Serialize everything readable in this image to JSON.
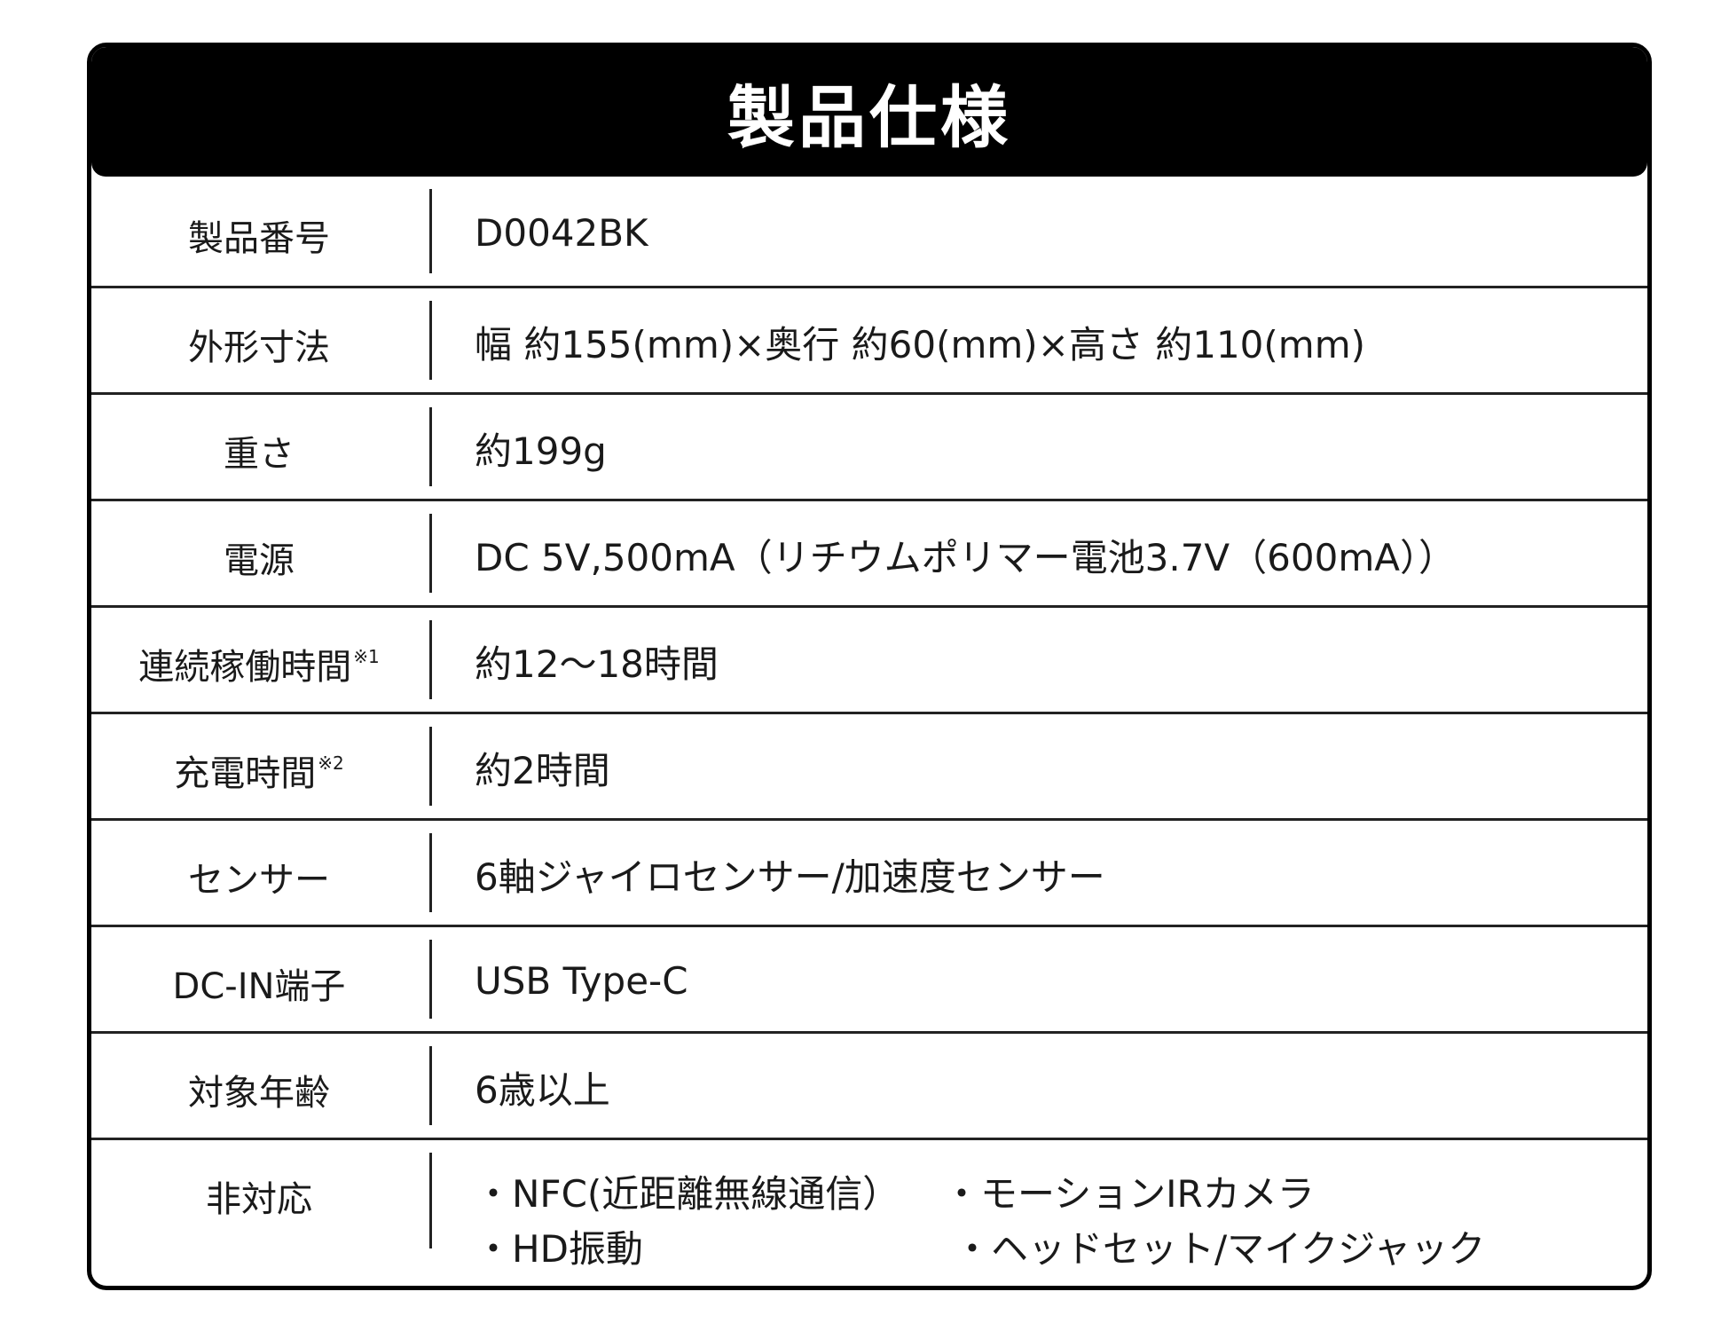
{
  "title": "製品仕様",
  "rows": [
    {
      "label": "製品番号",
      "note": "",
      "value": "D0042BK"
    },
    {
      "label": "外形寸法",
      "note": "",
      "value": "幅 約155(mm)×奥行 約60(mm)×高さ 約110(mm)"
    },
    {
      "label": "重さ",
      "note": "",
      "value": "約199g"
    },
    {
      "label": "電源",
      "note": "",
      "value": "DC 5V,500mA（リチウムポリマー電池3.7V（600mA））"
    },
    {
      "label": "連続稼働時間",
      "note": "※1",
      "value": "約12～18時間"
    },
    {
      "label": "充電時間",
      "note": "※2",
      "value": "約2時間"
    },
    {
      "label": "センサー",
      "note": "",
      "value": "6軸ジャイロセンサー/加速度センサー"
    },
    {
      "label": "DC-IN端子",
      "note": "",
      "value": "USB Type-C"
    },
    {
      "label": "対象年齢",
      "note": "",
      "value": "6歳以上"
    }
  ],
  "unsupported": {
    "label": "非対応",
    "items": [
      "・NFC(近距離無線通信）",
      "・モーションIRカメラ",
      "・HD振動",
      "・ヘッドセット/マイクジャック"
    ]
  }
}
